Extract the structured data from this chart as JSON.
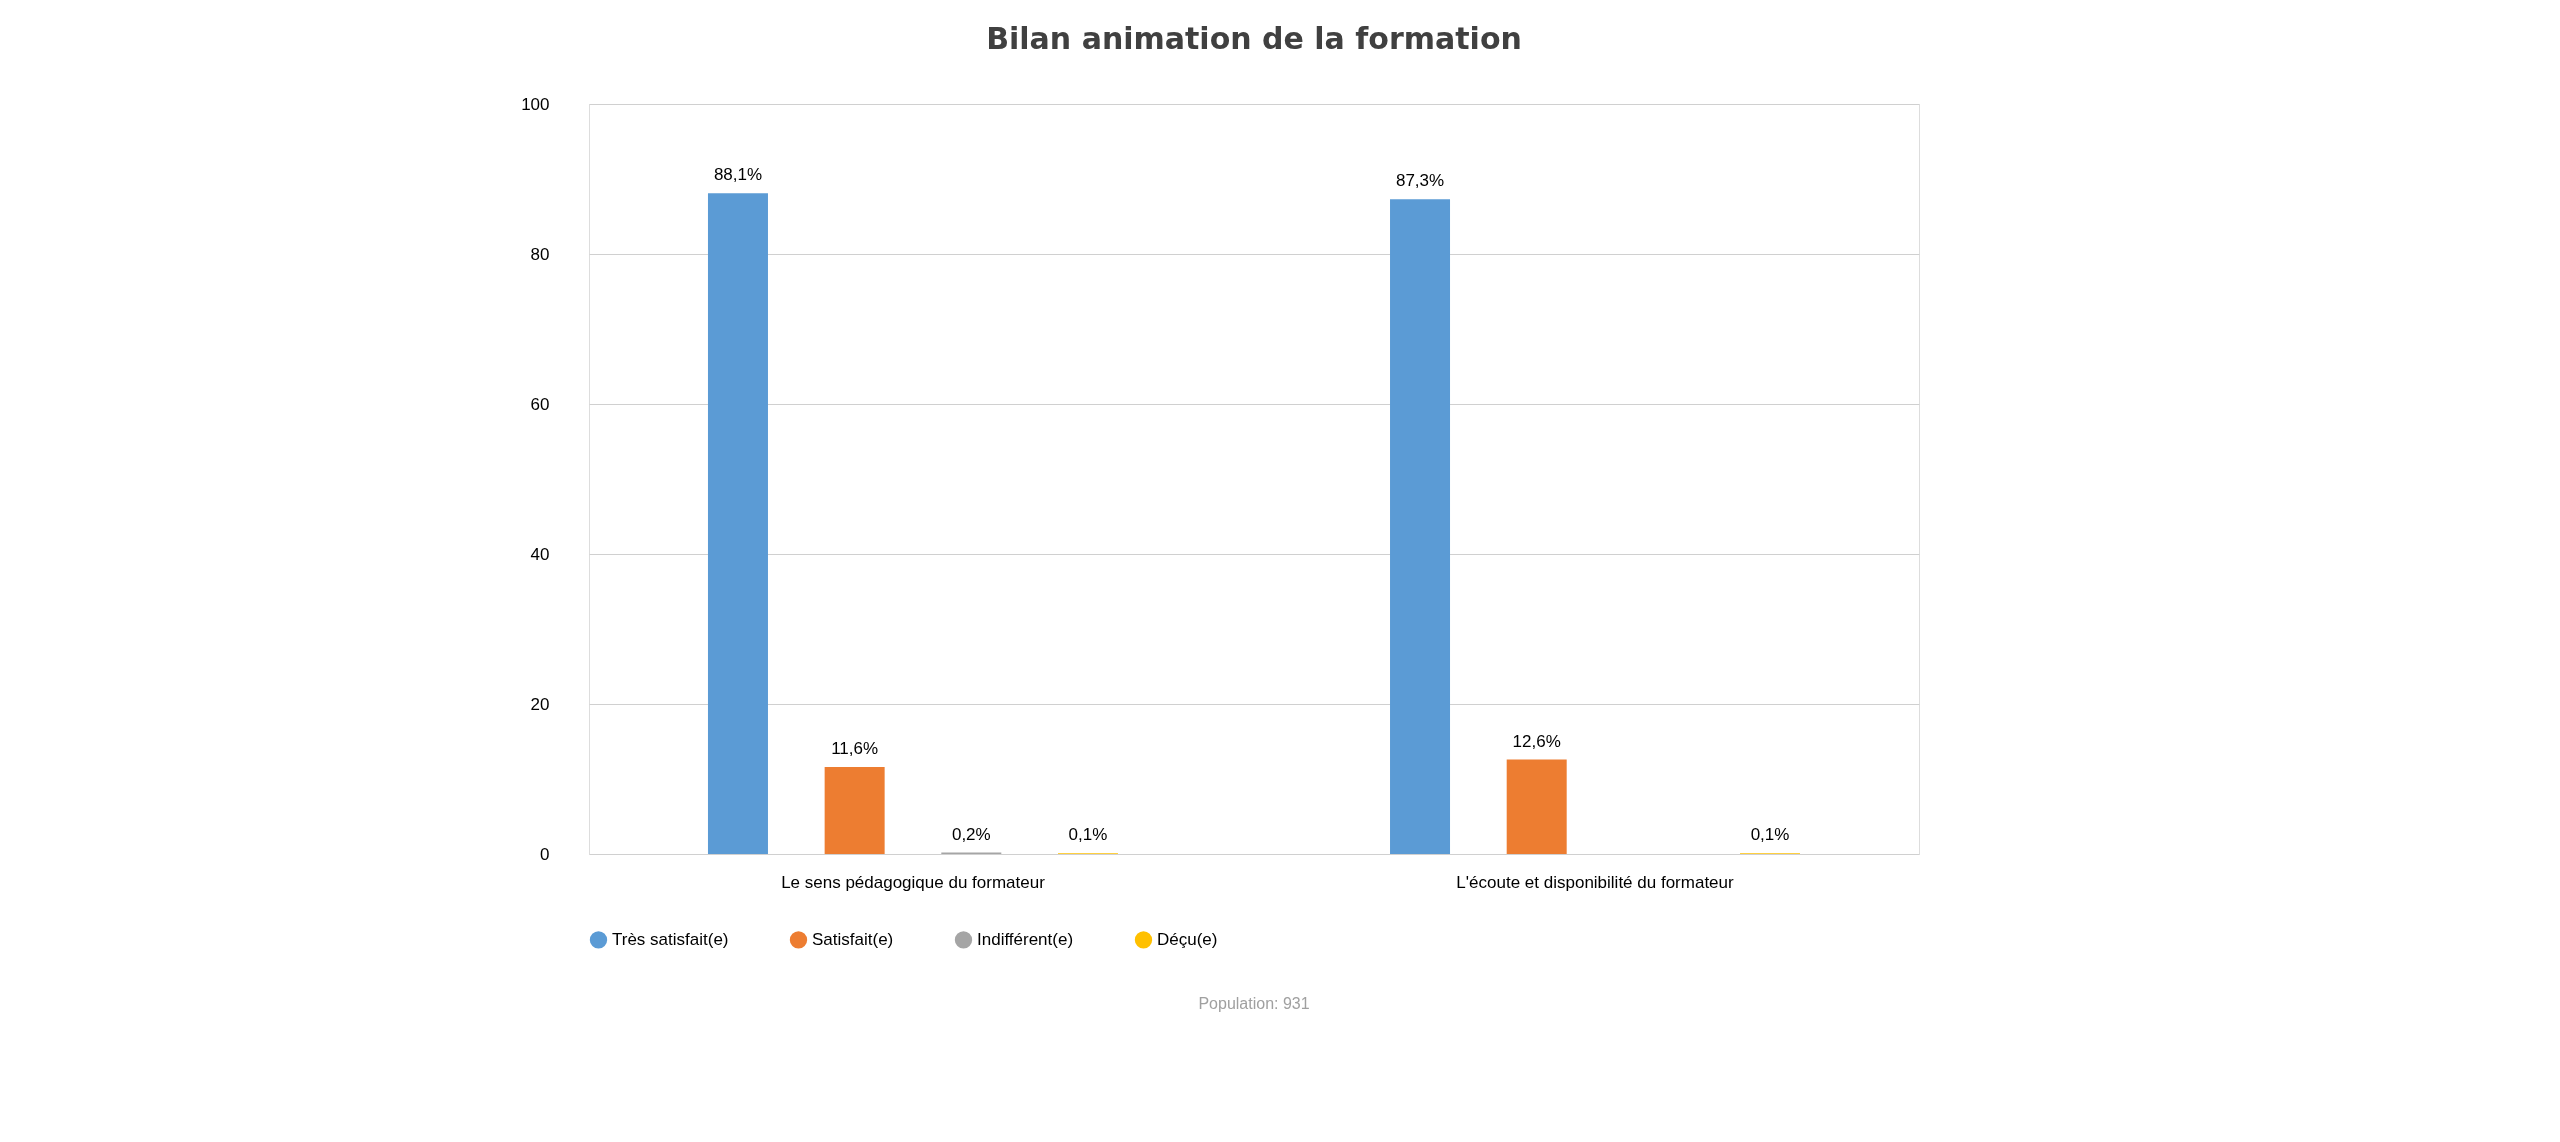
{
  "chart_data": {
    "type": "bar",
    "title": "Bilan animation de la formation",
    "categories": [
      "Le sens pédagogique du formateur",
      "L'écoute et disponibilité du formateur"
    ],
    "series": [
      {
        "name": "Très satisfait(e)",
        "color": "#5b9bd5",
        "values": [
          88.1,
          87.3
        ],
        "value_labels": [
          "88,1%",
          "87,3%"
        ]
      },
      {
        "name": "Satisfait(e)",
        "color": "#ed7d31",
        "values": [
          11.6,
          12.6
        ],
        "value_labels": [
          "11,6%",
          "12,6%"
        ]
      },
      {
        "name": "Indifférent(e)",
        "color": "#a5a5a5",
        "values": [
          0.2,
          0
        ],
        "value_labels": [
          "0,2%",
          null
        ]
      },
      {
        "name": "Déçu(e)",
        "color": "#ffc000",
        "values": [
          0.1,
          0.1
        ],
        "value_labels": [
          "0,1%",
          "0,1%"
        ]
      }
    ],
    "ylim": [
      0,
      100
    ],
    "yticks": [
      0,
      20,
      40,
      60,
      80,
      100
    ],
    "grid": "y",
    "legend": "bottom",
    "annotations": [
      "Population: 931"
    ]
  }
}
